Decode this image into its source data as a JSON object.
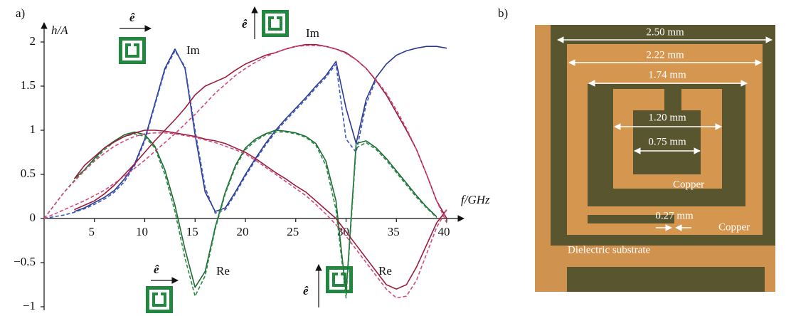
{
  "chart_data": {
    "type": "line",
    "panel_label": "a)",
    "y_label": "h/A",
    "x_label": "f/GHz",
    "annotations": [
      "Im",
      "Im",
      "Re",
      "Re",
      "ê",
      "ê",
      "ê",
      "ê"
    ],
    "xlim": [
      0,
      40
    ],
    "ylim": [
      -1,
      2
    ],
    "xticks": [
      5,
      10,
      15,
      20,
      25,
      30,
      35,
      40
    ],
    "yticks": [
      {
        "value": -1,
        "label": "−1"
      },
      {
        "value": -0.5,
        "label": "−0.5"
      },
      0,
      0.5,
      1,
      1.5,
      2
    ],
    "x": [
      0,
      1,
      2,
      3,
      4,
      5,
      6,
      7,
      8,
      9,
      10,
      11,
      12,
      13,
      14,
      15,
      16,
      17,
      18,
      19,
      20,
      21,
      22,
      23,
      24,
      25,
      26,
      27,
      28,
      29,
      30,
      31,
      32,
      33,
      34,
      35,
      36,
      37,
      38,
      39,
      40
    ],
    "series": [
      {
        "color": "#2b3a8f",
        "dashed": false,
        "values": [
          null,
          null,
          null,
          0.08,
          0.12,
          0.18,
          0.24,
          0.32,
          0.45,
          0.62,
          0.9,
          1.3,
          1.7,
          1.92,
          1.7,
          0.95,
          0.3,
          0.08,
          0.12,
          0.3,
          0.5,
          0.68,
          0.85,
          1.0,
          1.13,
          1.25,
          1.37,
          1.5,
          1.62,
          1.78,
          1.25,
          0.85,
          1.35,
          1.6,
          1.75,
          1.85,
          1.9,
          1.93,
          1.95,
          1.95,
          1.93
        ]
      },
      {
        "color": "#3a55c0",
        "dashed": true,
        "values": [
          0,
          0.02,
          0.04,
          0.07,
          0.11,
          0.16,
          0.22,
          0.3,
          0.42,
          0.6,
          0.88,
          1.28,
          1.68,
          1.9,
          1.72,
          1.0,
          0.35,
          0.06,
          0.1,
          0.28,
          0.48,
          0.66,
          0.83,
          0.98,
          1.11,
          1.23,
          1.35,
          1.48,
          1.6,
          1.75,
          0.9,
          0.75,
          1.3,
          1.58,
          null,
          null,
          null,
          null,
          null,
          null,
          null
        ]
      },
      {
        "color": "#1e6b36",
        "dashed": false,
        "values": [
          null,
          null,
          null,
          0.45,
          0.55,
          0.68,
          0.8,
          0.88,
          0.95,
          0.98,
          0.95,
          0.82,
          0.55,
          0.15,
          -0.35,
          -0.78,
          -0.6,
          -0.1,
          0.3,
          0.6,
          0.8,
          0.9,
          0.96,
          1.0,
          0.99,
          0.97,
          0.93,
          0.85,
          0.65,
          0.2,
          -0.85,
          0.85,
          0.88,
          0.8,
          0.68,
          0.54,
          0.4,
          0.26,
          0.13,
          0.02,
          null
        ]
      },
      {
        "color": "#2a8a45",
        "dashed": true,
        "values": [
          0,
          0.15,
          0.3,
          0.43,
          0.54,
          0.66,
          0.78,
          0.87,
          0.93,
          0.96,
          0.93,
          0.8,
          0.5,
          0.08,
          -0.45,
          -0.88,
          -0.65,
          -0.12,
          0.28,
          0.58,
          0.78,
          0.88,
          0.95,
          0.98,
          0.98,
          0.96,
          0.92,
          0.83,
          0.6,
          0.1,
          -0.9,
          0.8,
          0.86,
          0.78,
          0.66,
          0.52,
          0.38,
          0.24,
          0.12,
          0.01,
          null
        ]
      },
      {
        "color": "#9b1b3a",
        "dashed": false,
        "values": [
          null,
          null,
          null,
          0.1,
          0.15,
          0.2,
          0.28,
          0.38,
          0.5,
          0.62,
          0.75,
          0.88,
          1.0,
          1.12,
          1.25,
          1.4,
          1.5,
          1.55,
          1.6,
          1.68,
          1.75,
          1.8,
          1.85,
          1.88,
          1.92,
          1.95,
          1.97,
          1.97,
          1.95,
          1.92,
          1.88,
          1.8,
          1.7,
          1.56,
          1.4,
          1.2,
          1.0,
          0.78,
          0.5,
          0.2,
          0.0
        ]
      },
      {
        "color": "#d04a80",
        "dashed": true,
        "values": [
          0,
          0.05,
          0.1,
          0.15,
          0.2,
          0.26,
          0.32,
          0.4,
          0.48,
          0.57,
          0.66,
          0.76,
          0.86,
          0.96,
          1.07,
          1.18,
          1.3,
          1.42,
          1.52,
          1.62,
          1.7,
          1.77,
          1.83,
          1.88,
          1.92,
          1.95,
          1.96,
          1.96,
          1.95,
          1.92,
          1.87,
          1.8,
          1.7,
          1.57,
          1.42,
          1.23,
          1.02,
          0.78,
          0.5,
          0.2,
          -0.05
        ]
      },
      {
        "color": "#9b1b3a",
        "dashed": false,
        "values": [
          null,
          null,
          null,
          0.45,
          0.6,
          0.7,
          0.8,
          0.87,
          0.93,
          0.97,
          1.0,
          1.0,
          0.99,
          0.97,
          0.95,
          0.93,
          0.9,
          0.88,
          0.85,
          0.8,
          0.75,
          0.68,
          0.6,
          0.52,
          0.45,
          0.37,
          0.3,
          0.2,
          0.1,
          0.0,
          -0.15,
          -0.3,
          -0.45,
          -0.6,
          -0.75,
          -0.8,
          -0.75,
          -0.55,
          -0.3,
          -0.05,
          0.1
        ]
      },
      {
        "color": "#d04a80",
        "dashed": true,
        "values": [
          0,
          0.15,
          0.3,
          0.42,
          0.54,
          0.65,
          0.74,
          0.82,
          0.88,
          0.93,
          0.96,
          0.97,
          0.97,
          0.96,
          0.94,
          0.92,
          0.89,
          0.86,
          0.82,
          0.78,
          0.73,
          0.66,
          0.58,
          0.5,
          0.42,
          0.34,
          0.26,
          0.16,
          0.05,
          -0.07,
          -0.2,
          -0.35,
          -0.5,
          -0.65,
          -0.8,
          -0.9,
          -0.88,
          -0.7,
          -0.4,
          -0.1,
          0.1
        ]
      }
    ]
  },
  "photo": {
    "panel_label": "b)",
    "dimensions": [
      "2.50 mm",
      "2.22 mm",
      "1.74 mm",
      "1.20 mm",
      "0.75 mm",
      "0.27 mm"
    ],
    "materials": [
      "Copper",
      "Copper",
      "Dielectric substrate"
    ]
  }
}
